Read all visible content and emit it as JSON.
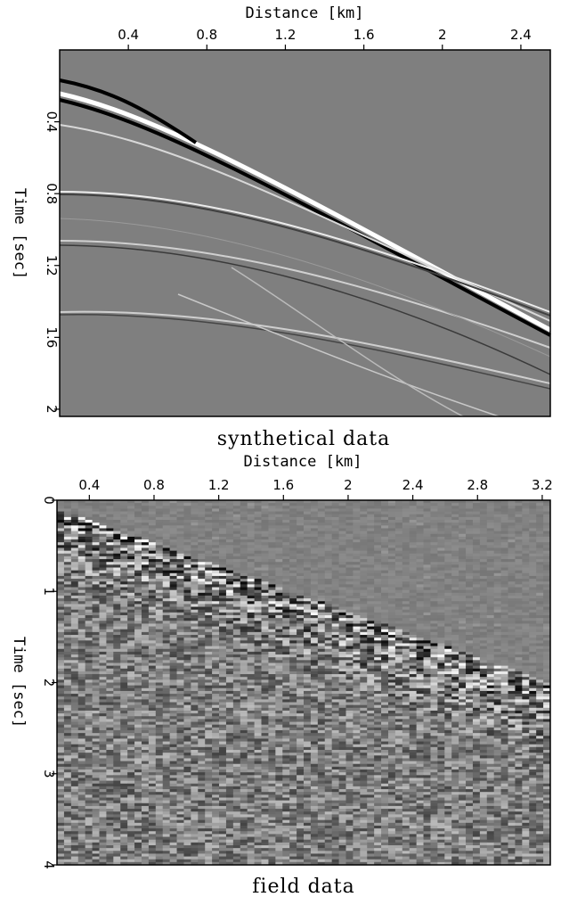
{
  "figure": {
    "panels": [
      {
        "caption": "synthetical data",
        "x_axis_title": "Distance [km]",
        "y_axis_title": "Time [sec]",
        "x_ticks": [
          "0.4",
          "0.8",
          "1.2",
          "1.6",
          "2",
          "2.4"
        ],
        "y_ticks": [
          "0.4",
          "0.8",
          "1.2",
          "1.6",
          "2"
        ]
      },
      {
        "caption": "field data",
        "x_axis_title": "Distance [km]",
        "y_axis_title": "Time [sec]",
        "x_ticks": [
          "0.4",
          "0.8",
          "1.2",
          "1.6",
          "2",
          "2.4",
          "2.8",
          "3.2"
        ],
        "y_ticks": [
          "0",
          "1",
          "2",
          "3",
          "4"
        ]
      }
    ]
  },
  "chart_data": [
    {
      "type": "heatmap",
      "title": "synthetical data",
      "xlabel": "Distance [km]",
      "ylabel": "Time [sec]",
      "xlim": [
        0.05,
        2.55
      ],
      "ylim": [
        2.04,
        0.0
      ],
      "x_ticks": [
        0.4,
        0.8,
        1.2,
        1.6,
        2.0,
        2.4
      ],
      "y_ticks": [
        0.4,
        0.8,
        1.2,
        1.6,
        2.0
      ],
      "colormap": "grayscale",
      "background": "#808080",
      "x_axis_position": "top"
    },
    {
      "type": "heatmap",
      "title": "field data",
      "xlabel": "Distance [km]",
      "ylabel": "Time [sec]",
      "xlim": [
        0.2,
        3.25
      ],
      "ylim": [
        4.0,
        0.0
      ],
      "x_ticks": [
        0.4,
        0.8,
        1.2,
        1.6,
        2.0,
        2.4,
        2.8,
        3.2
      ],
      "y_ticks": [
        0,
        1,
        2,
        3,
        4
      ],
      "colormap": "grayscale",
      "background": "#808080",
      "x_axis_position": "top"
    }
  ]
}
